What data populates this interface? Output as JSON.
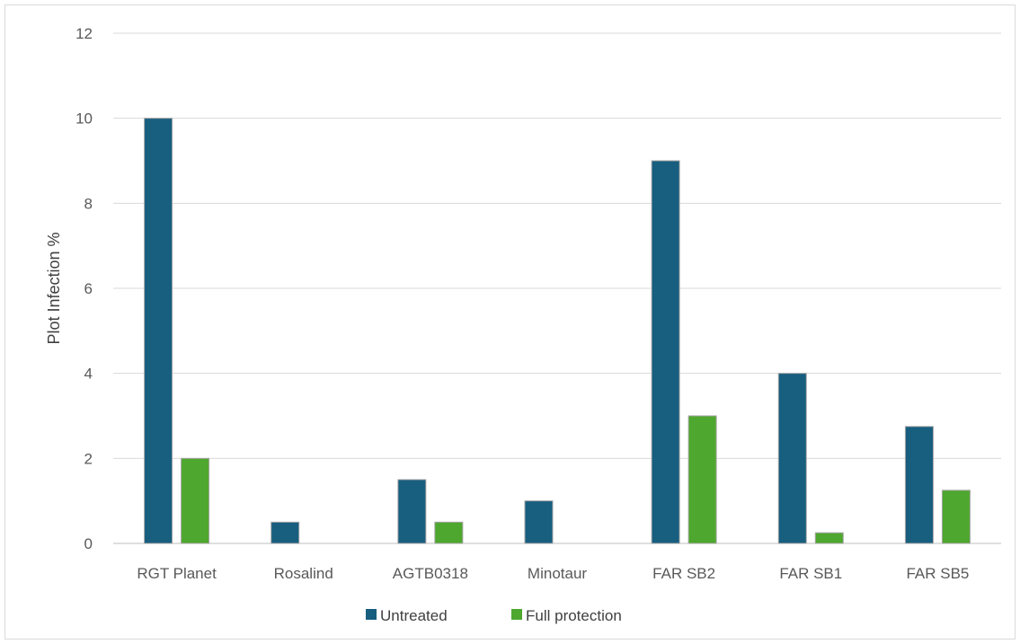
{
  "chart_data": {
    "type": "bar",
    "title": "",
    "xlabel": "",
    "ylabel": "Plot Infection %",
    "ylim": [
      0,
      12
    ],
    "yticks": [
      0,
      2,
      4,
      6,
      8,
      10,
      12
    ],
    "grid": true,
    "legend_position": "bottom",
    "categories": [
      "RGT Planet",
      "Rosalind",
      "AGTB0318",
      "Minotaur",
      "FAR SB2",
      "FAR SB1",
      "FAR SB5"
    ],
    "series": [
      {
        "name": "Untreated",
        "color": "#175e7f",
        "values": [
          10,
          0.5,
          1.5,
          1,
          9,
          4,
          2.75
        ]
      },
      {
        "name": "Full protection",
        "color": "#4ea72e",
        "values": [
          2,
          0,
          0.5,
          0,
          3,
          0.25,
          1.25
        ]
      }
    ]
  }
}
